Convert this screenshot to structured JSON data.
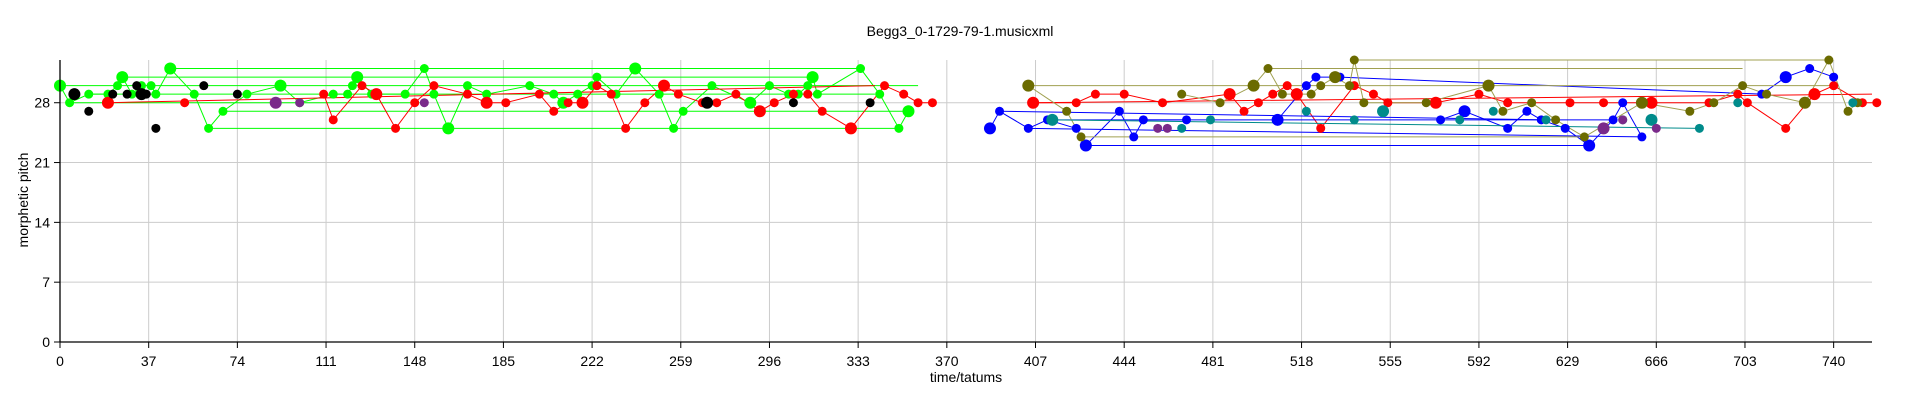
{
  "chart_data": {
    "type": "scatter",
    "title": "Begg3_0-1729-79-1.musicxml",
    "xlabel": "time/tatums",
    "ylabel": "morphetic pitch",
    "xlim": [
      0,
      756
    ],
    "ylim": [
      0,
      33
    ],
    "x_ticks": [
      0,
      37,
      74,
      111,
      148,
      185,
      222,
      259,
      296,
      333,
      370,
      407,
      444,
      481,
      518,
      555,
      592,
      629,
      666,
      703,
      740
    ],
    "y_ticks": [
      0,
      7,
      14,
      21,
      28
    ],
    "grid": true,
    "colors": {
      "green": "#00ff00",
      "red": "#ff0000",
      "blue": "#0000ff",
      "olive": "#6b6b00",
      "teal": "#008b8b",
      "purple": "#7a2a8a",
      "black": "#000000",
      "line_olive": "#a0a050"
    },
    "series": [
      {
        "color": "green",
        "points": [
          [
            0,
            30
          ],
          [
            4,
            28
          ],
          [
            12,
            29
          ],
          [
            20,
            29
          ],
          [
            24,
            30
          ],
          [
            26,
            31
          ],
          [
            30,
            29
          ],
          [
            34,
            30
          ],
          [
            38,
            30
          ],
          [
            40,
            29
          ],
          [
            46,
            32
          ],
          [
            56,
            29
          ],
          [
            62,
            25
          ],
          [
            68,
            27
          ],
          [
            78,
            29
          ],
          [
            92,
            30
          ],
          [
            100,
            28
          ],
          [
            114,
            29
          ],
          [
            120,
            29
          ],
          [
            122,
            30
          ],
          [
            124,
            31
          ],
          [
            130,
            29
          ],
          [
            144,
            29
          ],
          [
            152,
            32
          ],
          [
            156,
            29
          ],
          [
            162,
            25
          ],
          [
            170,
            30
          ],
          [
            178,
            29
          ],
          [
            196,
            30
          ],
          [
            206,
            29
          ],
          [
            210,
            28
          ],
          [
            216,
            29
          ],
          [
            222,
            30
          ],
          [
            224,
            31
          ],
          [
            232,
            29
          ],
          [
            240,
            32
          ],
          [
            250,
            29
          ],
          [
            256,
            25
          ],
          [
            260,
            27
          ],
          [
            272,
            30
          ],
          [
            288,
            28
          ],
          [
            296,
            30
          ],
          [
            304,
            29
          ],
          [
            308,
            29
          ],
          [
            312,
            30
          ],
          [
            314,
            31
          ],
          [
            316,
            29
          ],
          [
            334,
            32
          ],
          [
            342,
            29
          ],
          [
            350,
            25
          ],
          [
            354,
            27
          ]
        ],
        "lines": [
          [
            [
              0,
              30
            ],
            [
              358,
              30
            ]
          ],
          [
            [
              4,
              28
            ],
            [
              150,
              28
            ]
          ],
          [
            [
              26,
              31
            ],
            [
              314,
              31
            ]
          ],
          [
            [
              46,
              32
            ],
            [
              334,
              32
            ]
          ],
          [
            [
              62,
              25
            ],
            [
              350,
              25
            ]
          ],
          [
            [
              68,
              27
            ],
            [
              354,
              27
            ]
          ],
          [
            [
              12,
              29
            ],
            [
              340,
              29
            ]
          ]
        ]
      },
      {
        "color": "red",
        "points": [
          [
            20,
            28
          ],
          [
            52,
            28
          ],
          [
            110,
            29
          ],
          [
            114,
            26
          ],
          [
            126,
            30
          ],
          [
            132,
            29
          ],
          [
            140,
            25
          ],
          [
            148,
            28
          ],
          [
            156,
            30
          ],
          [
            170,
            29
          ],
          [
            178,
            28
          ],
          [
            186,
            28
          ],
          [
            200,
            29
          ],
          [
            206,
            27
          ],
          [
            212,
            28
          ],
          [
            218,
            28
          ],
          [
            224,
            30
          ],
          [
            230,
            29
          ],
          [
            236,
            25
          ],
          [
            244,
            28
          ],
          [
            252,
            30
          ],
          [
            258,
            29
          ],
          [
            268,
            28
          ],
          [
            274,
            28
          ],
          [
            282,
            29
          ],
          [
            292,
            27
          ],
          [
            298,
            28
          ],
          [
            306,
            29
          ],
          [
            312,
            29
          ],
          [
            318,
            27
          ],
          [
            330,
            25
          ],
          [
            344,
            30
          ],
          [
            352,
            29
          ],
          [
            358,
            28
          ],
          [
            364,
            28
          ],
          [
            406,
            28
          ],
          [
            424,
            28
          ],
          [
            432,
            29
          ],
          [
            444,
            29
          ],
          [
            460,
            28
          ],
          [
            488,
            29
          ],
          [
            494,
            27
          ],
          [
            500,
            28
          ],
          [
            506,
            29
          ],
          [
            512,
            30
          ],
          [
            516,
            29
          ],
          [
            526,
            25
          ],
          [
            540,
            30
          ],
          [
            548,
            29
          ],
          [
            554,
            28
          ],
          [
            574,
            28
          ],
          [
            592,
            29
          ],
          [
            604,
            28
          ],
          [
            630,
            28
          ],
          [
            644,
            28
          ],
          [
            664,
            28
          ],
          [
            688,
            28
          ],
          [
            700,
            29
          ],
          [
            704,
            28
          ],
          [
            720,
            25
          ],
          [
            732,
            29
          ],
          [
            740,
            30
          ],
          [
            752,
            28
          ],
          [
            758,
            28
          ]
        ],
        "lines": [
          [
            [
              20,
              28
            ],
            [
              340,
              30
            ]
          ],
          [
            [
              406,
              28
            ],
            [
              756,
              29
            ]
          ]
        ]
      },
      {
        "color": "blue",
        "points": [
          [
            388,
            25
          ],
          [
            392,
            27
          ],
          [
            404,
            25
          ],
          [
            412,
            26
          ],
          [
            424,
            25
          ],
          [
            428,
            23
          ],
          [
            442,
            27
          ],
          [
            448,
            24
          ],
          [
            452,
            26
          ],
          [
            470,
            26
          ],
          [
            508,
            26
          ],
          [
            520,
            30
          ],
          [
            524,
            31
          ],
          [
            534,
            31
          ],
          [
            576,
            26
          ],
          [
            586,
            27
          ],
          [
            604,
            25
          ],
          [
            612,
            27
          ],
          [
            618,
            26
          ],
          [
            628,
            25
          ],
          [
            638,
            23
          ],
          [
            648,
            26
          ],
          [
            652,
            28
          ],
          [
            660,
            24
          ],
          [
            710,
            29
          ],
          [
            720,
            31
          ],
          [
            730,
            32
          ],
          [
            740,
            31
          ]
        ],
        "lines": [
          [
            [
              392,
              27
            ],
            [
              620,
              26
            ]
          ],
          [
            [
              404,
              25
            ],
            [
              660,
              24
            ]
          ],
          [
            [
              412,
              26
            ],
            [
              648,
              26
            ]
          ],
          [
            [
              428,
              23
            ],
            [
              638,
              23
            ]
          ],
          [
            [
              534,
              31
            ],
            [
              710,
              29
            ]
          ]
        ]
      },
      {
        "color": "olive",
        "points": [
          [
            404,
            30
          ],
          [
            420,
            27
          ],
          [
            426,
            24
          ],
          [
            468,
            29
          ],
          [
            484,
            28
          ],
          [
            498,
            30
          ],
          [
            504,
            32
          ],
          [
            510,
            29
          ],
          [
            522,
            29
          ],
          [
            526,
            30
          ],
          [
            532,
            31
          ],
          [
            538,
            30
          ],
          [
            540,
            33
          ],
          [
            544,
            28
          ],
          [
            570,
            28
          ],
          [
            596,
            30
          ],
          [
            602,
            27
          ],
          [
            614,
            28
          ],
          [
            624,
            26
          ],
          [
            636,
            24
          ],
          [
            660,
            28
          ],
          [
            680,
            27
          ],
          [
            690,
            28
          ],
          [
            702,
            30
          ],
          [
            712,
            29
          ],
          [
            728,
            28
          ],
          [
            738,
            33
          ],
          [
            746,
            27
          ],
          [
            750,
            28
          ]
        ],
        "lines": [
          [
            [
              404,
              30
            ],
            [
              740,
              30
            ]
          ],
          [
            [
              540,
              33
            ],
            [
              738,
              33
            ]
          ],
          [
            [
              504,
              32
            ],
            [
              702,
              32
            ]
          ],
          [
            [
              426,
              24
            ],
            [
              636,
              24
            ]
          ]
        ]
      },
      {
        "color": "teal",
        "points": [
          [
            414,
            26
          ],
          [
            468,
            25
          ],
          [
            480,
            26
          ],
          [
            520,
            27
          ],
          [
            540,
            26
          ],
          [
            552,
            27
          ],
          [
            584,
            26
          ],
          [
            598,
            27
          ],
          [
            620,
            26
          ],
          [
            652,
            26
          ],
          [
            664,
            26
          ],
          [
            684,
            25
          ],
          [
            700,
            28
          ],
          [
            748,
            28
          ]
        ],
        "lines": [
          [
            [
              414,
              26
            ],
            [
              684,
              25
            ]
          ]
        ]
      },
      {
        "color": "purple",
        "points": [
          [
            90,
            28
          ],
          [
            100,
            28
          ],
          [
            152,
            28
          ],
          [
            458,
            25
          ],
          [
            462,
            25
          ],
          [
            644,
            25
          ],
          [
            652,
            26
          ],
          [
            666,
            25
          ]
        ],
        "lines": []
      },
      {
        "color": "black",
        "points": [
          [
            6,
            29
          ],
          [
            12,
            27
          ],
          [
            22,
            29
          ],
          [
            28,
            29
          ],
          [
            32,
            30
          ],
          [
            34,
            29
          ],
          [
            36,
            29
          ],
          [
            40,
            25
          ],
          [
            60,
            30
          ],
          [
            74,
            29
          ],
          [
            270,
            28
          ],
          [
            306,
            28
          ],
          [
            338,
            28
          ]
        ],
        "lines": []
      }
    ]
  }
}
